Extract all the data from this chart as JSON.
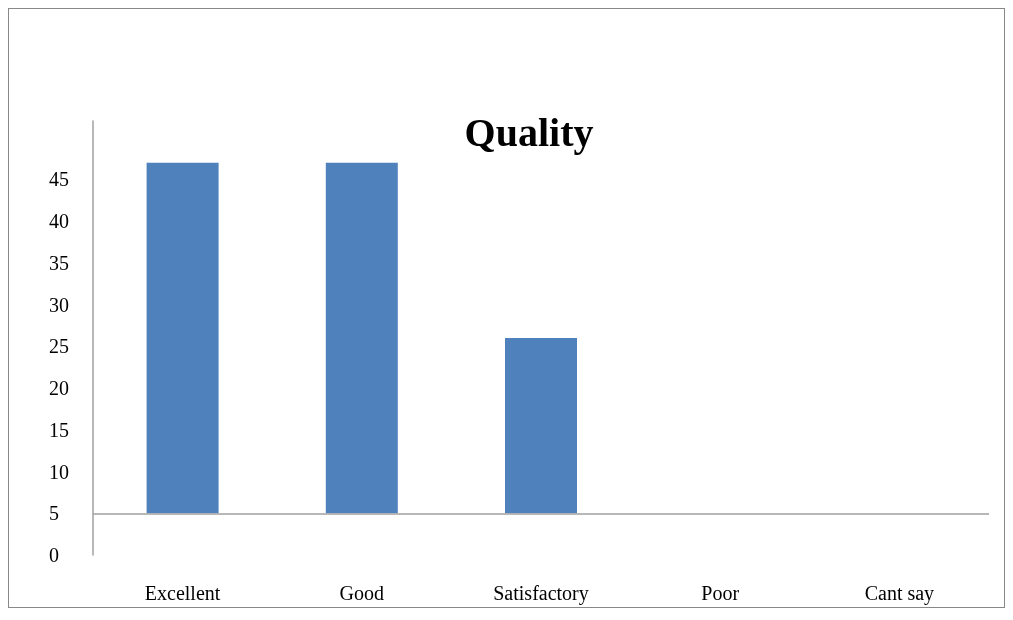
{
  "chart_data": {
    "type": "bar",
    "title": "Quality",
    "categories": [
      "Excellent",
      "Good",
      "Satisfactory",
      "Poor",
      "Cant say"
    ],
    "values": [
      42,
      42,
      21,
      null,
      null
    ],
    "base": [
      5,
      5,
      5,
      null,
      null
    ],
    "color": "#4f81bd",
    "ylim": [
      0,
      52
    ],
    "yticks": [
      0,
      5,
      10,
      15,
      20,
      25,
      30,
      35,
      40,
      45
    ],
    "ref_lines": [
      {
        "axis": "y",
        "value": 5,
        "color": "#a0a0a0"
      }
    ],
    "grid": false
  }
}
